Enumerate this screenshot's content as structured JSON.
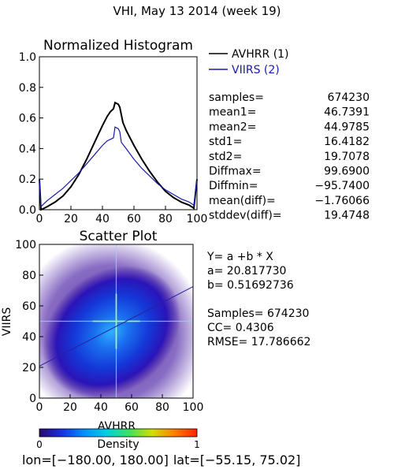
{
  "header": {
    "title": "VHI,  May 13 2014 (week 19)"
  },
  "chart_data": [
    {
      "type": "line",
      "title": "Normalized Histogram",
      "xlim": [
        0,
        100
      ],
      "ylim": [
        0,
        1.0
      ],
      "x_ticks": [
        "0",
        "20",
        "40",
        "60",
        "80",
        "100"
      ],
      "y_ticks": [
        "0.0",
        "0.2",
        "0.4",
        "0.6",
        "0.8",
        "1.0"
      ],
      "grid": false,
      "legend_position": "top-right",
      "series": [
        {
          "name": "AVHRR (1)",
          "color": "#000000",
          "points": [
            [
              0,
              0.2
            ],
            [
              1,
              0.0
            ],
            [
              3,
              0.01
            ],
            [
              5,
              0.02
            ],
            [
              10,
              0.05
            ],
            [
              15,
              0.09
            ],
            [
              20,
              0.15
            ],
            [
              25,
              0.23
            ],
            [
              30,
              0.33
            ],
            [
              35,
              0.44
            ],
            [
              40,
              0.55
            ],
            [
              43,
              0.61
            ],
            [
              45,
              0.64
            ],
            [
              47,
              0.66
            ],
            [
              48,
              0.7
            ],
            [
              50,
              0.69
            ],
            [
              51,
              0.67
            ],
            [
              53,
              0.57
            ],
            [
              55,
              0.52
            ],
            [
              60,
              0.42
            ],
            [
              65,
              0.33
            ],
            [
              70,
              0.25
            ],
            [
              75,
              0.18
            ],
            [
              80,
              0.12
            ],
            [
              85,
              0.08
            ],
            [
              90,
              0.05
            ],
            [
              95,
              0.03
            ],
            [
              98,
              0.01
            ],
            [
              100,
              0.2
            ]
          ]
        },
        {
          "name": "VIIRS (2)",
          "color": "#1a1aa8",
          "points": [
            [
              0,
              0.2
            ],
            [
              1,
              0.02
            ],
            [
              3,
              0.04
            ],
            [
              5,
              0.06
            ],
            [
              10,
              0.1
            ],
            [
              15,
              0.14
            ],
            [
              20,
              0.19
            ],
            [
              25,
              0.24
            ],
            [
              30,
              0.3
            ],
            [
              35,
              0.36
            ],
            [
              40,
              0.42
            ],
            [
              43,
              0.45
            ],
            [
              45,
              0.46
            ],
            [
              47,
              0.47
            ],
            [
              48,
              0.54
            ],
            [
              50,
              0.53
            ],
            [
              51,
              0.51
            ],
            [
              52,
              0.44
            ],
            [
              55,
              0.4
            ],
            [
              60,
              0.33
            ],
            [
              65,
              0.27
            ],
            [
              70,
              0.22
            ],
            [
              75,
              0.17
            ],
            [
              80,
              0.13
            ],
            [
              85,
              0.1
            ],
            [
              90,
              0.07
            ],
            [
              95,
              0.05
            ],
            [
              98,
              0.03
            ],
            [
              100,
              0.2
            ]
          ]
        }
      ]
    },
    {
      "type": "heatmap",
      "title": "Scatter Plot",
      "xlabel": "AVHRR",
      "ylabel": "VIIRS",
      "xlim": [
        0,
        100
      ],
      "ylim": [
        0,
        100
      ],
      "x_ticks": [
        "0",
        "20",
        "40",
        "60",
        "80",
        "100"
      ],
      "y_ticks": [
        "0",
        "20",
        "40",
        "60",
        "80",
        "100"
      ],
      "density_center": [
        47,
        43
      ],
      "regression": {
        "a": 20.81773,
        "b": 0.51692736
      },
      "colorbar": {
        "label": "Density",
        "min_label": "0",
        "max_label": "1",
        "colors": [
          "#2a0a6a",
          "#1a30e0",
          "#0090ff",
          "#00d0e0",
          "#40e060",
          "#d0e000",
          "#ff8000",
          "#ff2000"
        ]
      }
    }
  ],
  "stats": [
    {
      "label": "samples=",
      "value": "674230"
    },
    {
      "label": "mean1=",
      "value": "46.7391"
    },
    {
      "label": "mean2=",
      "value": "44.9785"
    },
    {
      "label": "std1=",
      "value": "16.4182"
    },
    {
      "label": "std2=",
      "value": "19.7078"
    },
    {
      "label": "Diffmax=",
      "value": "99.6900"
    },
    {
      "label": "Diffmin=",
      "value": "−95.7400"
    },
    {
      "label": "mean(diff)=",
      "value": "−1.76066"
    },
    {
      "label": "stddev(diff)=",
      "value": "19.4748"
    }
  ],
  "regression_text": [
    "Y= a +b * X",
    "a= 20.817730",
    "b= 0.51692736",
    "",
    "Samples= 674230",
    "CC=  0.4306",
    "RMSE= 17.786662"
  ],
  "footer": {
    "lon_label": "lon=",
    "lon_range": "[−180.00, 180.00]",
    "lat_label": "lat=",
    "lat_range": "[−55.15, 75.02]"
  }
}
